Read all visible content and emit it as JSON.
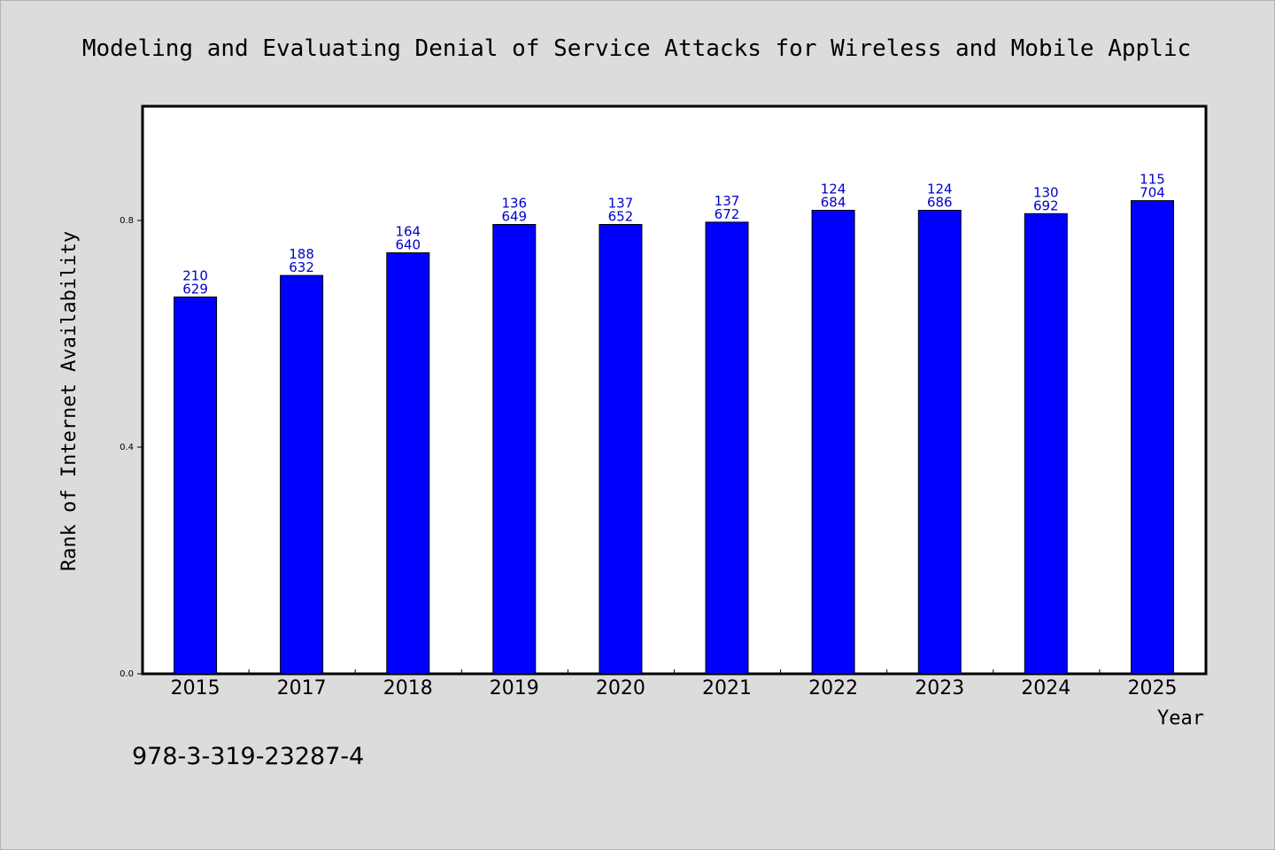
{
  "chart_data": {
    "type": "bar",
    "title": "Modeling and Evaluating Denial of Service Attacks for Wireless and Mobile Applic",
    "xlabel": "Year",
    "ylabel": "Rank of Internet Availability",
    "categories": [
      "2015",
      "2017",
      "2018",
      "2019",
      "2020",
      "2021",
      "2022",
      "2023",
      "2024",
      "2025"
    ],
    "series": [
      {
        "values": [
          0.665,
          0.703,
          0.743,
          0.793,
          0.793,
          0.797,
          0.818,
          0.818,
          0.812,
          0.835
        ],
        "label_top": [
          "210",
          "188",
          "164",
          "136",
          "137",
          "137",
          "124",
          "124",
          "130",
          "115"
        ],
        "label_bottom": [
          "629",
          "632",
          "640",
          "649",
          "652",
          "672",
          "684",
          "686",
          "692",
          "704"
        ]
      }
    ],
    "yticks": [
      "0.0",
      "0.4",
      "0.8"
    ],
    "ylim": [
      0,
      1.0
    ],
    "grid": false,
    "bar_color": "#0000ff",
    "label_color": "#0000cc",
    "background": "#dcdcdc",
    "plot_background": "#ffffff"
  },
  "footer": {
    "isbn": "978-3-319-23287-4"
  }
}
